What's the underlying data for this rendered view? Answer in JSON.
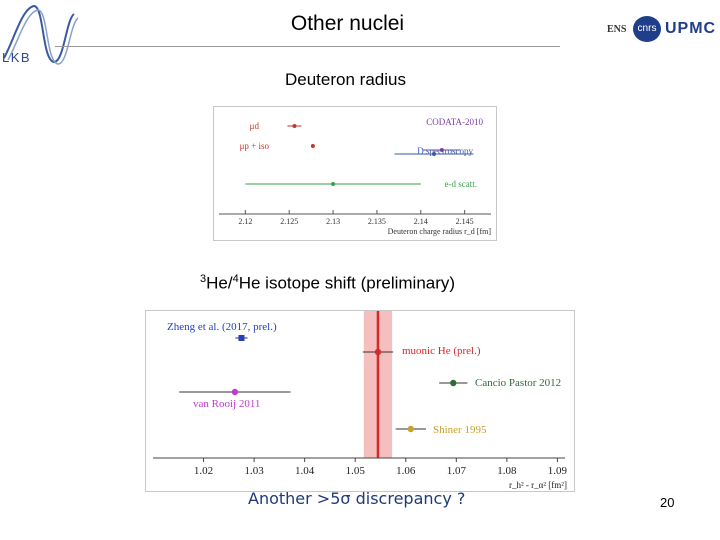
{
  "header": {
    "title": "Other nuclei",
    "lab_logo": "LKB",
    "logos": [
      "ENS",
      "cnrs",
      "UPMC"
    ]
  },
  "section1": {
    "label": "Deuteron radius"
  },
  "section2": {
    "pre1": "3",
    "mid1": "He/",
    "pre2": "4",
    "rest": "He isotope shift (preliminary)"
  },
  "footer": {
    "question": "Another >5σ discrepancy ?",
    "page": "20"
  },
  "chart_data": [
    {
      "type": "scatter",
      "xlabel": "Deuteron charge radius r_d [fm]",
      "xlim": [
        2.117,
        2.148
      ],
      "ticks": [
        "2.12",
        "2.125",
        "2.13",
        "2.135",
        "2.14",
        "2.145"
      ],
      "tick_values": [
        2.12,
        2.125,
        2.13,
        2.135,
        2.14,
        2.145
      ],
      "series": [
        {
          "name": "μd",
          "value": 2.1256,
          "err": 0.0008,
          "color": "#c0392b"
        },
        {
          "name": "μp + iso",
          "value": 2.1277,
          "err": 0.0002,
          "color": "#c0392b"
        },
        {
          "name": "CODATA-2010",
          "value": 2.1424,
          "err": 0.0021,
          "color": "#7a3ea8"
        },
        {
          "name": "D spectroscopy",
          "value": 2.1415,
          "err": 0.0045,
          "color": "#3b5aa8"
        },
        {
          "name": "e-d scatt.",
          "value": 2.13,
          "err": 0.01,
          "color": "#3aa04a"
        }
      ]
    },
    {
      "type": "scatter",
      "xlabel": "r_h² - r_α² [fm²]",
      "xlim": [
        1.01,
        1.0915
      ],
      "ticks": [
        "1.02",
        "1.03",
        "1.04",
        "1.05",
        "1.06",
        "1.07",
        "1.08",
        "1.09"
      ],
      "tick_values": [
        1.02,
        1.03,
        1.04,
        1.05,
        1.06,
        1.07,
        1.08,
        1.09
      ],
      "band": {
        "center": 1.0545,
        "halfwidth": 0.0028,
        "color": "#f2a9a9"
      },
      "series": [
        {
          "name": "Zheng et al. (2017, prel.)",
          "value": 1.0275,
          "err": 0.0012,
          "color": "#2342b8"
        },
        {
          "name": "muonic He (prel.)",
          "value": 1.0545,
          "err": 0.003,
          "color": "#d62828"
        },
        {
          "name": "Cancio Pastor 2012",
          "value": 1.0694,
          "err": 0.0028,
          "color": "#2e6b3a"
        },
        {
          "name": "van Rooij 2011",
          "value": 1.0262,
          "err": 0.011,
          "color": "#c23ad0"
        },
        {
          "name": "Shiner 1995",
          "value": 1.061,
          "err": 0.003,
          "color": "#c8a02a"
        }
      ]
    }
  ]
}
